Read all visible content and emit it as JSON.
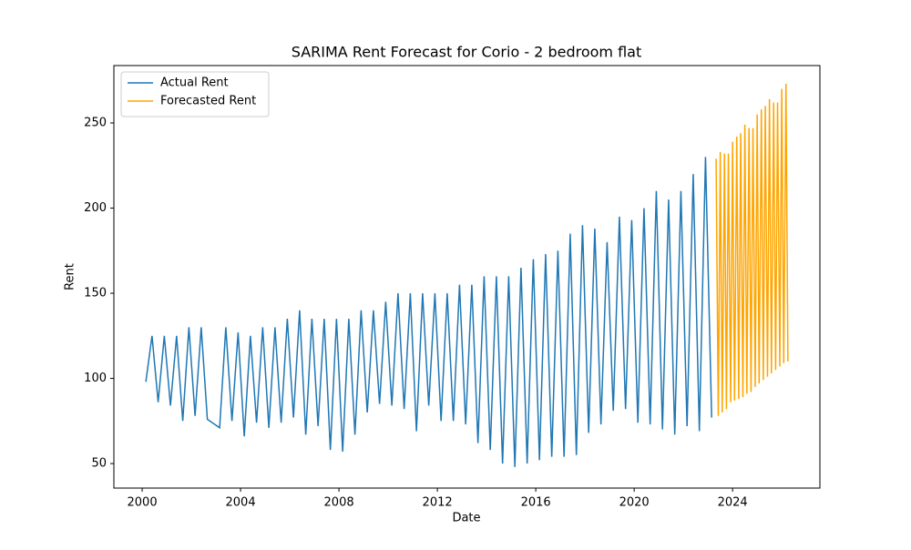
{
  "chart_data": {
    "type": "line",
    "title": "SARIMA Rent Forecast for Corio - 2 bedroom flat",
    "x_label": "Date",
    "y_label": "Rent",
    "xlim": [
      1998.85,
      2027.55
    ],
    "ylim": [
      35.6,
      283.7
    ],
    "xticks": [
      2000,
      2004,
      2008,
      2012,
      2016,
      2020,
      2024
    ],
    "yticks": [
      50,
      100,
      150,
      200,
      250
    ],
    "grid": false,
    "legend": "upper left",
    "series": [
      {
        "name": "Actual Rent",
        "color": "#1f77b4",
        "x": [
          2000.15,
          2000.4,
          2000.65,
          2000.9,
          2001.15,
          2001.4,
          2001.65,
          2001.9,
          2002.15,
          2002.4,
          2002.65,
          2003.15,
          2003.4,
          2003.65,
          2003.9,
          2004.15,
          2004.4,
          2004.65,
          2004.9,
          2005.15,
          2005.4,
          2005.65,
          2005.9,
          2006.15,
          2006.4,
          2006.65,
          2006.9,
          2007.15,
          2007.4,
          2007.65,
          2007.9,
          2008.15,
          2008.4,
          2008.65,
          2008.9,
          2009.15,
          2009.4,
          2009.65,
          2009.9,
          2010.15,
          2010.4,
          2010.65,
          2010.9,
          2011.15,
          2011.4,
          2011.65,
          2011.9,
          2012.15,
          2012.4,
          2012.65,
          2012.9,
          2013.15,
          2013.4,
          2013.65,
          2013.9,
          2014.15,
          2014.4,
          2014.65,
          2014.9,
          2015.15,
          2015.4,
          2015.65,
          2015.9,
          2016.15,
          2016.4,
          2016.65,
          2016.9,
          2017.15,
          2017.4,
          2017.65,
          2017.9,
          2018.15,
          2018.4,
          2018.65,
          2018.9,
          2019.15,
          2019.4,
          2019.65,
          2019.9,
          2020.15,
          2020.4,
          2020.65,
          2020.9,
          2021.15,
          2021.4,
          2021.65,
          2021.9,
          2022.15,
          2022.4,
          2022.65,
          2022.9,
          2023.15
        ],
        "values": [
          98,
          125,
          86,
          125,
          84,
          125,
          75,
          130,
          78,
          130,
          76,
          71,
          130,
          75,
          127,
          66,
          125,
          74,
          130,
          71,
          130,
          74,
          135,
          77,
          140,
          67,
          135,
          72,
          135,
          58,
          135,
          57,
          135,
          67,
          140,
          80,
          140,
          85,
          145,
          84,
          150,
          82,
          150,
          69,
          150,
          84,
          150,
          75,
          150,
          75,
          155,
          73,
          155,
          62,
          160,
          58,
          160,
          50,
          160,
          48,
          165,
          50,
          170,
          52,
          173,
          54,
          175,
          54,
          185,
          55,
          190,
          68,
          188,
          73,
          180,
          81,
          195,
          82,
          193,
          74,
          200,
          73,
          210,
          70,
          205,
          67,
          210,
          72,
          220,
          69,
          230,
          77
        ]
      },
      {
        "name": "Forecasted Rent",
        "color": "#ffa500",
        "x": [
          2023.33,
          2023.42,
          2023.5,
          2023.58,
          2023.67,
          2023.75,
          2023.83,
          2023.92,
          2024,
          2024.08,
          2024.17,
          2024.25,
          2024.33,
          2024.42,
          2024.5,
          2024.58,
          2024.67,
          2024.75,
          2024.83,
          2024.92,
          2025,
          2025.08,
          2025.17,
          2025.25,
          2025.33,
          2025.42,
          2025.5,
          2025.58,
          2025.67,
          2025.75,
          2025.83,
          2025.92,
          2026,
          2026.08,
          2026.17,
          2026.25
        ],
        "values": [
          229,
          78,
          233,
          80,
          232,
          82,
          232,
          86,
          239,
          87,
          242,
          88,
          244,
          89,
          249,
          91,
          247,
          92,
          247,
          95,
          255,
          97,
          258,
          99,
          260,
          101,
          264,
          103,
          262,
          105,
          262,
          107,
          270,
          109,
          273,
          110
        ]
      }
    ]
  }
}
